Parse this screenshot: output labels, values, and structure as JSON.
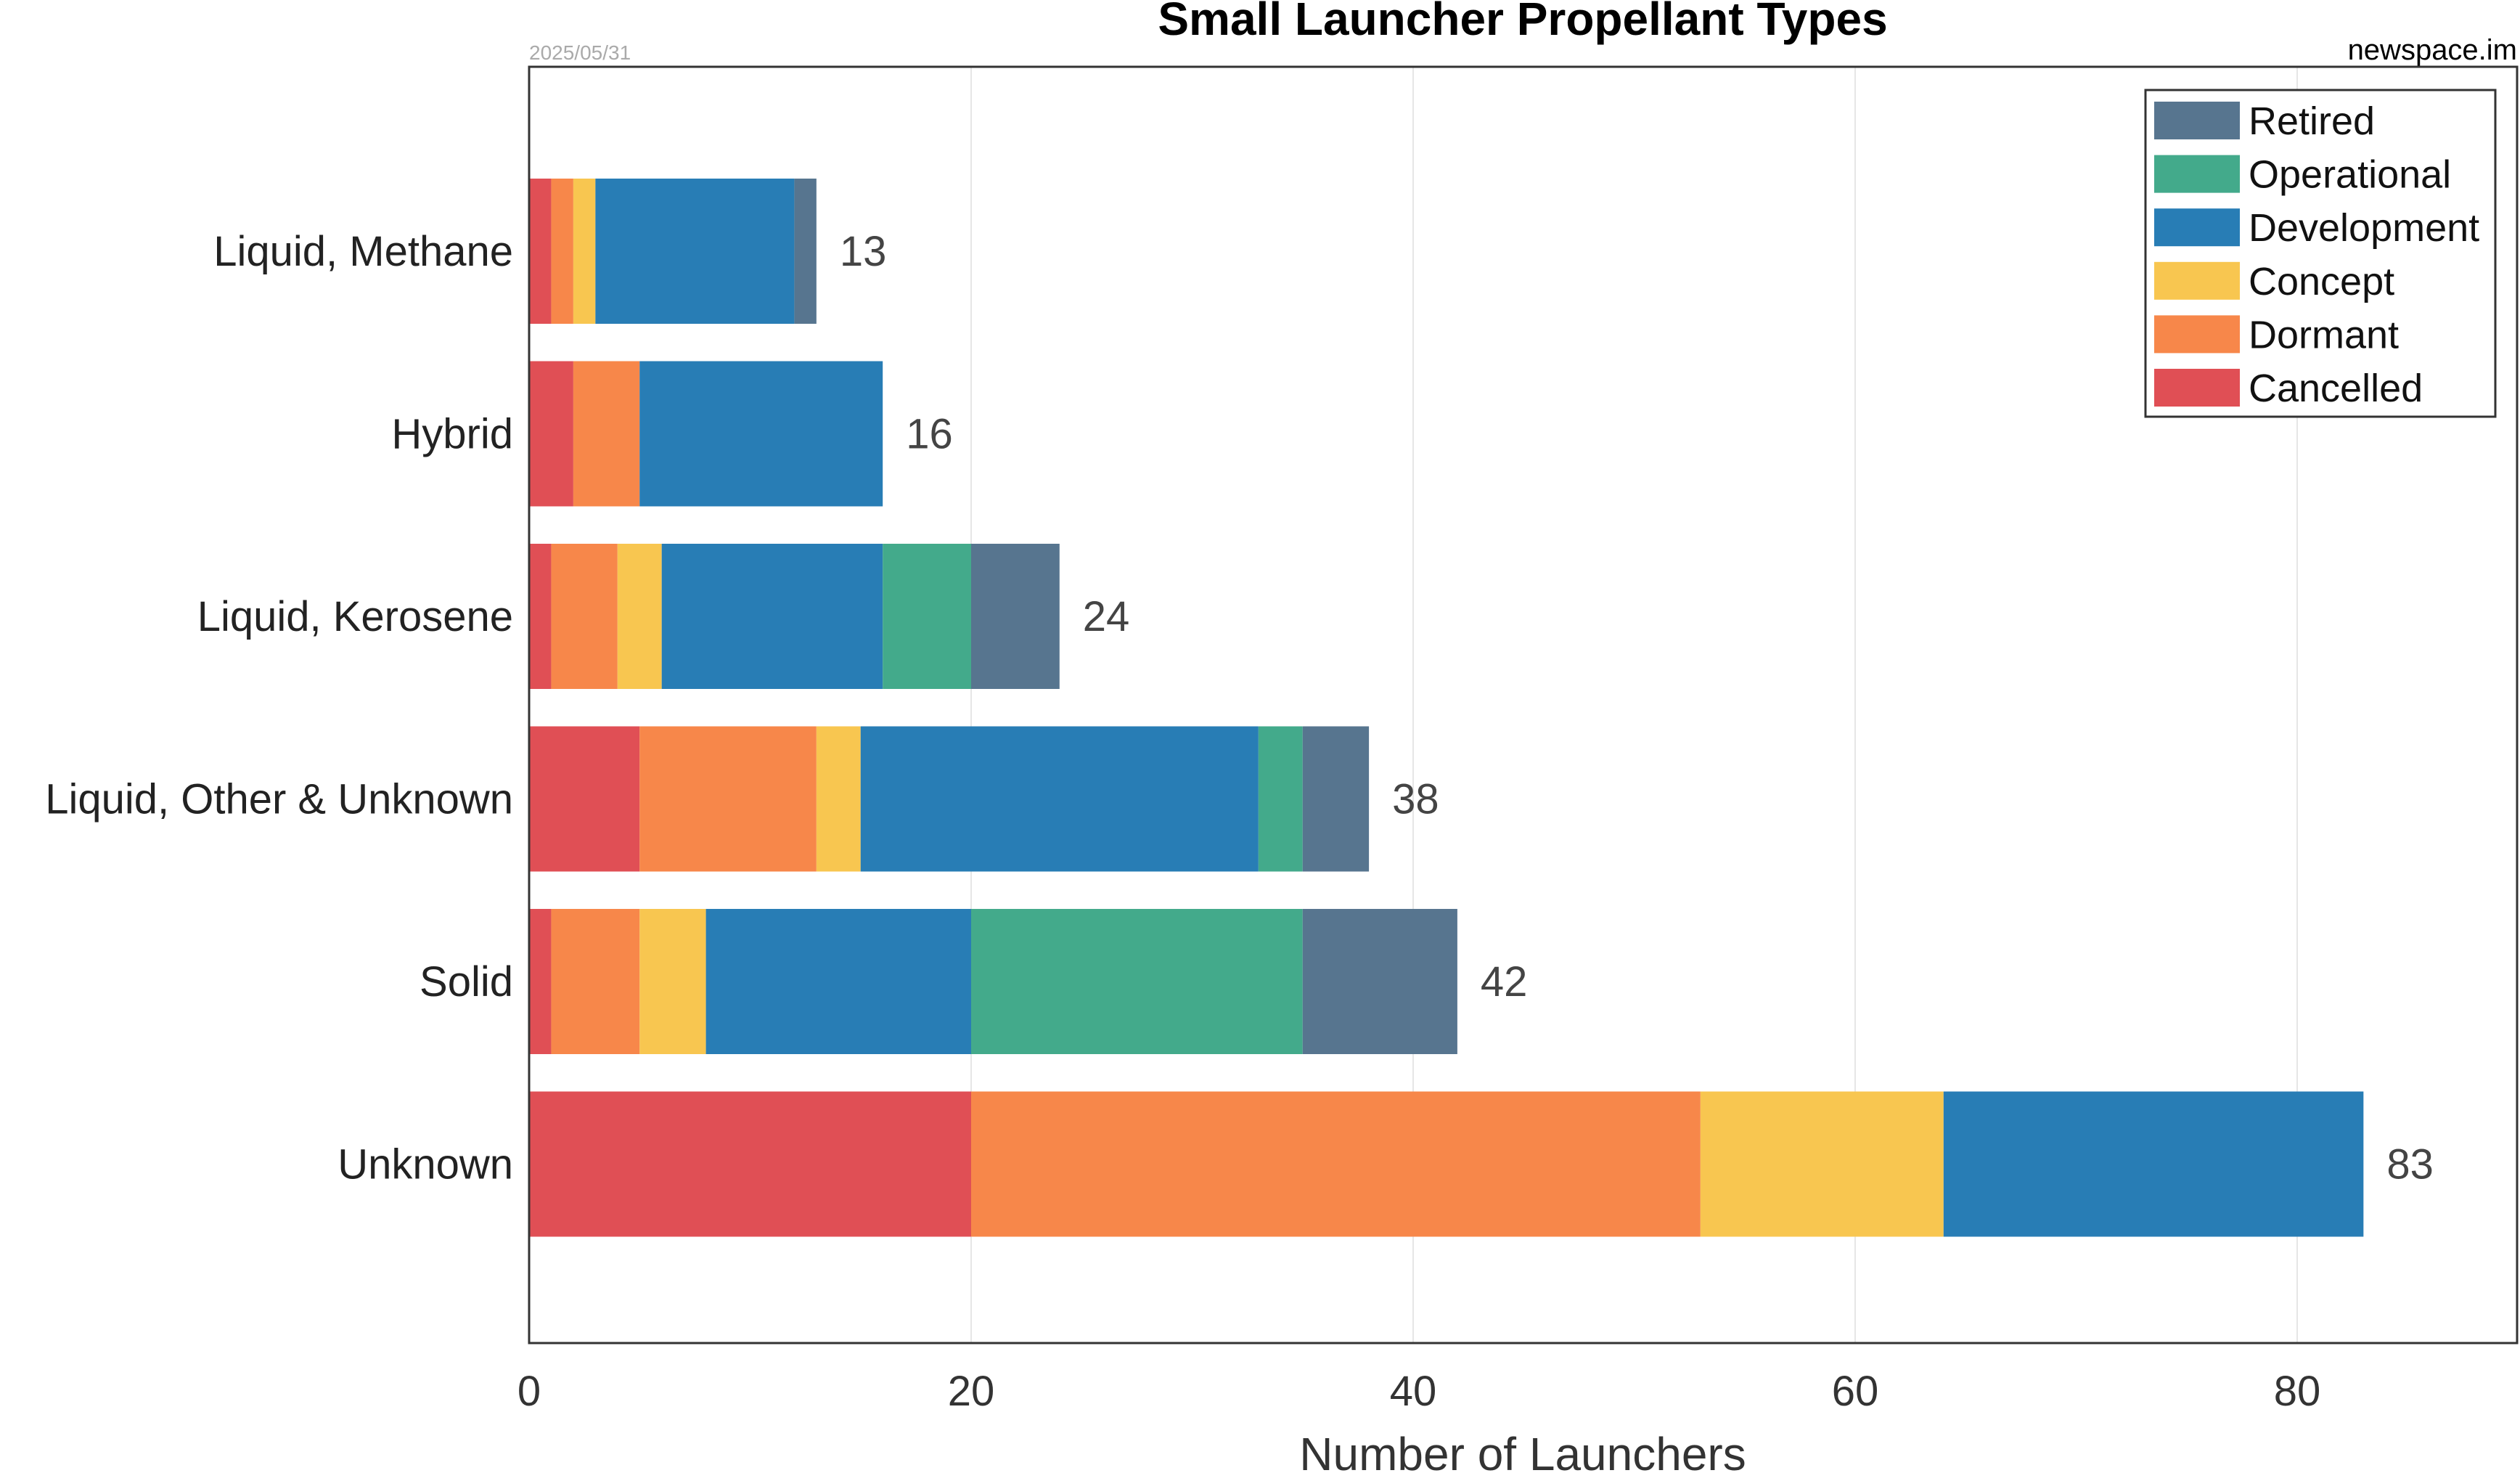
{
  "chart_data": {
    "type": "bar",
    "orientation": "horizontal",
    "stacked": true,
    "title": "Small Launcher Propellant Types",
    "date": "2025/05/31",
    "source": "newspace.im",
    "xlabel": "Number of Launchers",
    "ylabel": "",
    "xlim": [
      0,
      90
    ],
    "xticks": [
      0,
      20,
      40,
      60,
      80
    ],
    "grid": true,
    "legend_position": "top-right",
    "categories": [
      "Liquid, Methane",
      "Hybrid",
      "Liquid, Kerosene",
      "Liquid, Other & Unknown",
      "Solid",
      "Unknown"
    ],
    "totals": [
      13,
      16,
      24,
      38,
      42,
      83
    ],
    "series": [
      {
        "name": "Cancelled",
        "color": "#e04f55",
        "values": [
          1,
          2,
          1,
          5,
          1,
          20
        ]
      },
      {
        "name": "Dormant",
        "color": "#f7874a",
        "values": [
          1,
          3,
          3,
          8,
          4,
          33
        ]
      },
      {
        "name": "Concept",
        "color": "#f8c650",
        "values": [
          1,
          0,
          2,
          2,
          3,
          11
        ]
      },
      {
        "name": "Development",
        "color": "#287db5",
        "values": [
          9,
          11,
          10,
          18,
          12,
          19
        ]
      },
      {
        "name": "Operational",
        "color": "#43aa8b",
        "values": [
          0,
          0,
          4,
          2,
          15,
          0
        ]
      },
      {
        "name": "Retired",
        "color": "#57758f",
        "values": [
          1,
          0,
          4,
          3,
          7,
          0
        ]
      }
    ],
    "legend_order": [
      "Retired",
      "Operational",
      "Development",
      "Concept",
      "Dormant",
      "Cancelled"
    ]
  }
}
